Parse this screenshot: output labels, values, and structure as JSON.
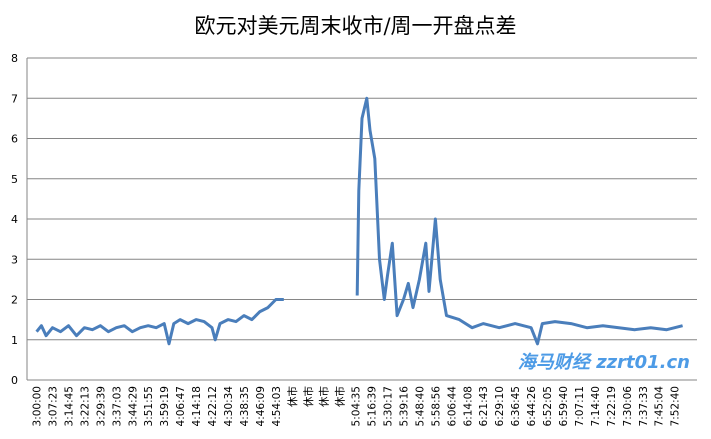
{
  "chart_data": {
    "type": "line",
    "title": "欧元对美元周末收市/周一开盘点差",
    "xlabel": "",
    "ylabel": "",
    "ylim": [
      0,
      8
    ],
    "yticks": [
      0,
      1,
      2,
      3,
      4,
      5,
      6,
      7,
      8
    ],
    "grid": true,
    "legend": "none",
    "line_color": "#4a7ebb",
    "categories": [
      "3:00:00",
      "3:07:23",
      "3:14:45",
      "3:22:13",
      "3:29:39",
      "3:37:03",
      "3:44:29",
      "3:51:55",
      "3:59:19",
      "4:06:47",
      "4:14:18",
      "4:22:12",
      "4:30:34",
      "4:38:35",
      "4:46:09",
      "4:54:03",
      "休市",
      "休市",
      "休市",
      "休市",
      "5:04:35",
      "5:16:39",
      "5:30:17",
      "5:39:16",
      "5:48:40",
      "5:58:56",
      "6:06:44",
      "6:14:08",
      "6:21:43",
      "6:29:10",
      "6:36:45",
      "6:44:26",
      "6:52:05",
      "6:59:40",
      "7:07:11",
      "7:14:40",
      "7:22:19",
      "7:30:06",
      "7:37:33",
      "7:45:04",
      "7:52:40"
    ],
    "series": [
      {
        "points": [
          [
            0,
            1.2
          ],
          [
            0.3,
            1.35
          ],
          [
            0.6,
            1.1
          ],
          [
            1,
            1.3
          ],
          [
            1.5,
            1.2
          ],
          [
            2,
            1.35
          ],
          [
            2.5,
            1.1
          ],
          [
            3,
            1.3
          ],
          [
            3.5,
            1.25
          ],
          [
            4,
            1.35
          ],
          [
            4.5,
            1.2
          ],
          [
            5,
            1.3
          ],
          [
            5.5,
            1.35
          ],
          [
            6,
            1.2
          ],
          [
            6.5,
            1.3
          ],
          [
            7,
            1.35
          ],
          [
            7.5,
            1.3
          ],
          [
            8,
            1.4
          ],
          [
            8.3,
            0.9
          ],
          [
            8.6,
            1.4
          ],
          [
            9,
            1.5
          ],
          [
            9.5,
            1.4
          ],
          [
            10,
            1.5
          ],
          [
            10.5,
            1.45
          ],
          [
            11,
            1.3
          ],
          [
            11.2,
            1.0
          ],
          [
            11.5,
            1.4
          ],
          [
            12,
            1.5
          ],
          [
            12.5,
            1.45
          ],
          [
            13,
            1.6
          ],
          [
            13.5,
            1.5
          ],
          [
            14,
            1.7
          ],
          [
            14.5,
            1.8
          ],
          [
            15,
            2.0
          ],
          [
            15.5,
            2.0
          ],
          null,
          [
            20.1,
            2.1
          ],
          [
            20.2,
            4.7
          ],
          [
            20.4,
            6.5
          ],
          [
            20.7,
            7.0
          ],
          [
            20.9,
            6.2
          ],
          [
            21.2,
            5.5
          ],
          [
            21.5,
            3.0
          ],
          [
            21.8,
            2.0
          ],
          [
            22,
            2.6
          ],
          [
            22.3,
            3.4
          ],
          [
            22.6,
            1.6
          ],
          [
            23,
            2.0
          ],
          [
            23.3,
            2.4
          ],
          [
            23.6,
            1.8
          ],
          [
            24,
            2.5
          ],
          [
            24.4,
            3.4
          ],
          [
            24.6,
            2.2
          ],
          [
            25,
            4.0
          ],
          [
            25.3,
            2.5
          ],
          [
            25.7,
            1.6
          ],
          [
            26.5,
            1.5
          ],
          [
            27.3,
            1.3
          ],
          [
            28,
            1.4
          ],
          [
            29,
            1.3
          ],
          [
            30,
            1.4
          ],
          [
            31,
            1.3
          ],
          [
            31.4,
            0.9
          ],
          [
            31.7,
            1.4
          ],
          [
            32.5,
            1.45
          ],
          [
            33.5,
            1.4
          ],
          [
            34.5,
            1.3
          ],
          [
            35.5,
            1.35
          ],
          [
            36.5,
            1.3
          ],
          [
            37.5,
            1.25
          ],
          [
            38.5,
            1.3
          ],
          [
            39.5,
            1.25
          ],
          [
            40,
            1.3
          ],
          [
            40.5,
            1.35
          ]
        ]
      }
    ]
  },
  "watermark": "海马财经 zzrt01.cn"
}
